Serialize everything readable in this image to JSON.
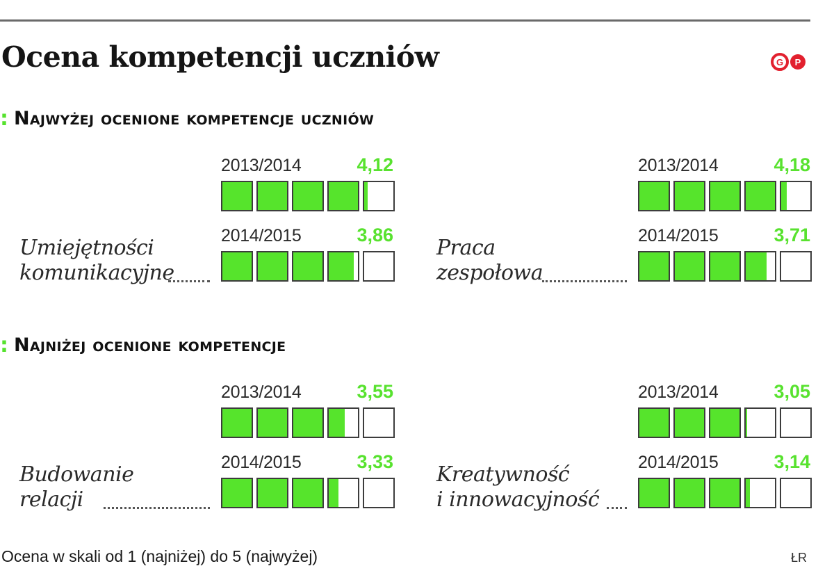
{
  "title": "Ocena kompetencji uczniów",
  "logo_text": "GP",
  "footnote": "Ocena w skali od 1 (najniżej) do 5 (najwyżej)",
  "credit": "ŁR",
  "colors": {
    "accent": "#56e42c",
    "box_border": "#3c3c3c",
    "rule": "#6a6a6a"
  },
  "sections": [
    {
      "marker": ":",
      "heading": "Najwyżej ocenione kompetencje uczniów"
    },
    {
      "marker": ":",
      "heading": "Najniżej ocenione kompetencje"
    }
  ],
  "chart_data": {
    "type": "bar",
    "scale_max": 5,
    "groups": [
      {
        "section": 0,
        "label_lines": [
          "Umiejętności",
          "komunikacyjne"
        ],
        "rows": [
          {
            "year": "2013/2014",
            "value": 4.12,
            "value_label": "4,12"
          },
          {
            "year": "2014/2015",
            "value": 3.86,
            "value_label": "3,86"
          }
        ]
      },
      {
        "section": 0,
        "label_lines": [
          "Praca",
          "zespołowa"
        ],
        "rows": [
          {
            "year": "2013/2014",
            "value": 4.18,
            "value_label": "4,18"
          },
          {
            "year": "2014/2015",
            "value": 3.71,
            "value_label": "3,71"
          }
        ]
      },
      {
        "section": 1,
        "label_lines": [
          "Budowanie",
          "relacji"
        ],
        "rows": [
          {
            "year": "2013/2014",
            "value": 3.55,
            "value_label": "3,55"
          },
          {
            "year": "2014/2015",
            "value": 3.33,
            "value_label": "3,33"
          }
        ]
      },
      {
        "section": 1,
        "label_lines": [
          "Kreatywność",
          "i innowacyjność"
        ],
        "rows": [
          {
            "year": "2013/2014",
            "value": 3.05,
            "value_label": "3,05"
          },
          {
            "year": "2014/2015",
            "value": 3.14,
            "value_label": "3,14"
          }
        ]
      }
    ]
  }
}
